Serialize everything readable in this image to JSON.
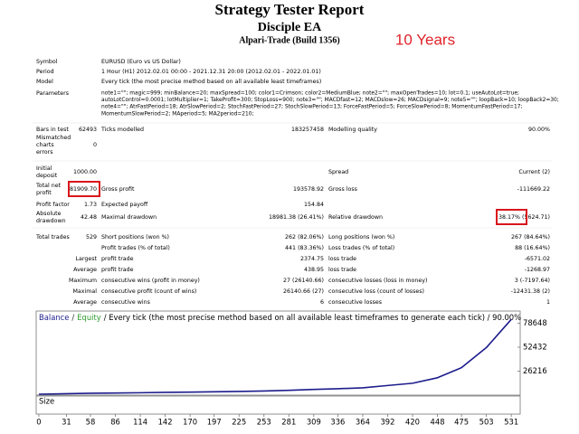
{
  "header": {
    "title": "Strategy Tester Report",
    "expert": "Disciple EA",
    "broker": "Alpari-Trade (Build 1356)",
    "note": "10 Years"
  },
  "info": [
    {
      "label": "Symbol",
      "value": [
        "EURUSD (Euro vs US Dollar)"
      ]
    },
    {
      "label": "Period",
      "value": [
        "1 Hour (H1) 2012.02.01 00:00 - 2021.12.31 20:00 (2012.02.01 - 2022.01.01)"
      ]
    },
    {
      "label": "Model",
      "value": [
        "Every tick (the most precise method based on all available least timeframes)"
      ]
    },
    {
      "label": "Parameters",
      "value": [
        "note1=\"\"; magic=999; minBalance=20; maxSpread=100; color1=Crimson; color2=MediumBlue; note2=\"\"; maxOpenTrades=10; lot=0.1; useAutoLot=true;",
        "autoLotControl=0.0001; lotMultiplier=1; TakeProfit=300; StopLoss=900; note3=\"\"; MACDfast=12; MACDslow=26; MACDsignal=9; note5=\"\"; loopBack=10; loopBack2=30;",
        "note4=\"\"; AtrFastPeriod=18; AtrSlowPeriod=2; StochFastPeriod=27; StochSlowPeriod=13; ForceFastPeriod=5; ForceSlowPeriod=8; MomentumFastPeriod=17;",
        "MomentumSlowPeriod=2; MAperiod=5; MA2period=210;"
      ]
    }
  ],
  "summary": {
    "rows": [
      [
        "Bars in test",
        "62493",
        "Ticks modelled",
        "183257458",
        "Modelling quality",
        "90.00%"
      ],
      [
        [
          "Mismatched",
          "charts",
          "errors"
        ],
        "0",
        null,
        null,
        null,
        null
      ],
      [
        [
          "Initial",
          "deposit"
        ],
        "1000.00",
        null,
        null,
        "Spread",
        "Current (2)"
      ],
      [
        [
          "Total net",
          "profit"
        ],
        "81909.70",
        "Gross profit",
        "193578.92",
        "Gross loss",
        "-111669.22"
      ],
      [
        "Profit factor",
        "1.73",
        "Expected payoff",
        "154.84",
        null,
        null
      ],
      [
        [
          "Absolute",
          "drawdown"
        ],
        "42.48",
        "Maximal drawdown",
        "18981.38 (26.41%)",
        "Relative drawdown",
        "38.17% (5624.71)"
      ],
      [
        "Total trades",
        "529",
        "Short positions (won %)",
        "262 (82.06%)",
        "Long positions (won %)",
        "267 (84.64%)"
      ],
      [
        null,
        null,
        "Profit trades (% of total)",
        "441 (83.36%)",
        "Loss trades (% of total)",
        "88 (16.64%)"
      ],
      [
        null,
        "Largest",
        "profit trade",
        "2374.75",
        "loss trade",
        "-6571.02"
      ],
      [
        null,
        "Average",
        "profit trade",
        "438.95",
        "loss trade",
        "-1268.97"
      ],
      [
        null,
        "Maximum",
        "consecutive wins (profit in money)",
        "27 (26140.66)",
        "consecutive losses (loss in money)",
        "3 (-7197.64)"
      ],
      [
        null,
        "Maximal",
        "consecutive profit (count of wins)",
        "26140.66 (27)",
        "consecutive loss (count of losses)",
        "-12431.38 (2)"
      ],
      [
        null,
        "Average",
        "consecutive wins",
        "6",
        "consecutive losses",
        "1"
      ]
    ]
  },
  "graph": {
    "type": "line",
    "legend": {
      "balance": "Balance",
      "separator": "/",
      "equity": "Equity",
      "rest": "/ Every tick (the most precise method based on all available least timeframes to generate each tick) / 90.00%"
    },
    "balance_color": "#1c1c8c",
    "equity_color": "#2e9b2e",
    "xlim": [
      -3,
      541
    ],
    "ylim": [
      0,
      92000
    ],
    "xticks": [
      0,
      31,
      58,
      86,
      114,
      142,
      170,
      197,
      225,
      253,
      281,
      309,
      336,
      364,
      392,
      420,
      448,
      475,
      503,
      531
    ],
    "yticks": [
      26216,
      52432,
      78648
    ],
    "x": [
      0,
      31,
      58,
      86,
      114,
      142,
      170,
      197,
      225,
      253,
      281,
      309,
      336,
      364,
      392,
      420,
      448,
      475,
      503,
      531
    ],
    "values": [
      1000,
      1500,
      2000,
      2300,
      2600,
      3000,
      3300,
      3600,
      4000,
      4500,
      5300,
      6200,
      7000,
      8000,
      10500,
      13000,
      19000,
      30000,
      52000,
      82910
    ],
    "size_label": "Size"
  }
}
